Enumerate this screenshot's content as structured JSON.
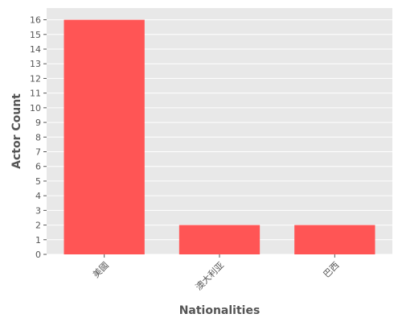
{
  "chart_data": {
    "type": "bar",
    "title": "",
    "xlabel": "Nationalities",
    "ylabel": "Actor Count",
    "categories": [
      "美國",
      "澳大利亚",
      "巴西"
    ],
    "values": [
      16,
      2,
      2
    ],
    "ylim": [
      0,
      16.8
    ],
    "yticks": [
      0,
      1,
      2,
      3,
      4,
      5,
      6,
      7,
      8,
      9,
      10,
      11,
      12,
      13,
      14,
      15,
      16
    ],
    "grid": true,
    "colors": {
      "bar": "#ff5555",
      "plot_background": "#e8e8e8",
      "grid": "#ffffff"
    }
  }
}
